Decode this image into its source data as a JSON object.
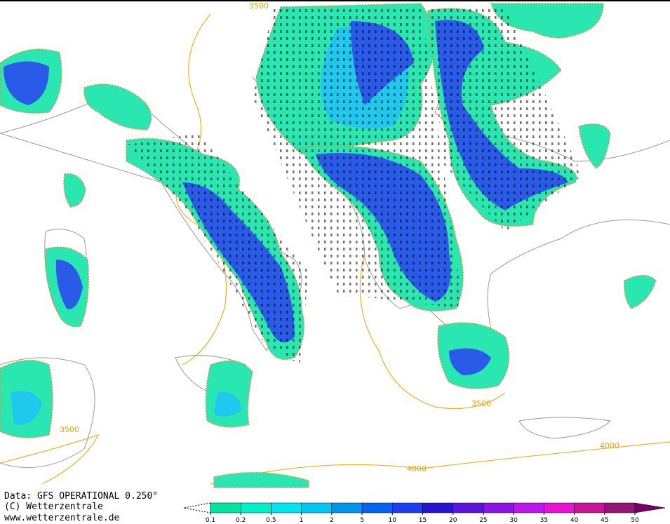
{
  "footer": {
    "source": "Data: GFS OPERATIONAL 0.250°",
    "copyright": "(C) Wetterzentrale",
    "url": "www.wetterzentrale.de"
  },
  "contour_labels": [
    3500,
    3500,
    3500,
    4000,
    4000
  ],
  "legend": {
    "ticks": [
      0.1,
      0.2,
      0.5,
      1,
      2,
      5,
      10,
      15,
      20,
      25,
      30,
      35,
      40,
      45,
      50
    ],
    "colors": [
      "#00e6a0",
      "#00f0c8",
      "#00e6f0",
      "#00c8f0",
      "#0096f0",
      "#0064f0",
      "#1e3cf0",
      "#2814d2",
      "#5a14dc",
      "#8c14e6",
      "#be14f0",
      "#e614d2",
      "#c81496",
      "#961478"
    ],
    "over_color": "#780064"
  }
}
